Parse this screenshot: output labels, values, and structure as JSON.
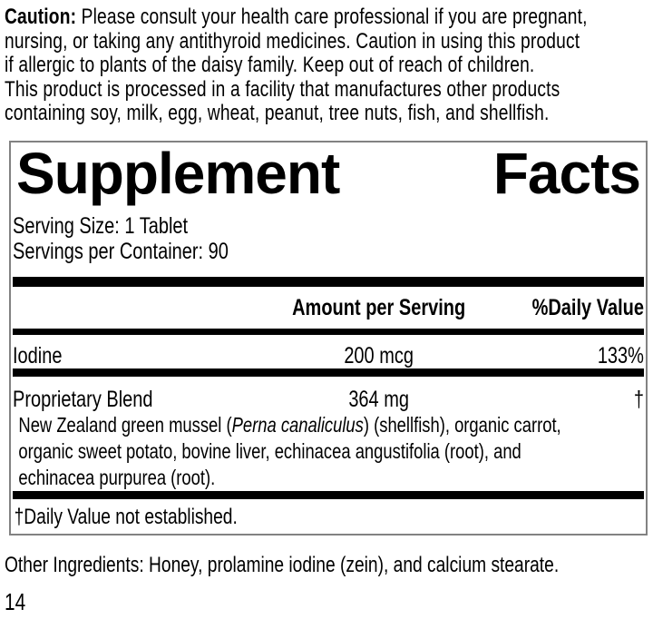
{
  "caution": {
    "label": "Caution:",
    "line1_rest": " Please consult your health care professional if you are pregnant,",
    "line2": "nursing, or taking any antithyroid medicines. Caution in using this product",
    "line3": "if allergic to plants of the daisy family. Keep out of reach of children.",
    "line4": "This product is processed in a facility that manufactures other products",
    "line5": "containing soy, milk, egg, wheat, peanut, tree nuts, fish, and shellfish."
  },
  "panel": {
    "title": {
      "word1": "Supplement",
      "word2": "Facts"
    },
    "serving_size": "Serving Size: 1 Tablet",
    "servings_per_container": "Servings per Container: 90",
    "columns": {
      "amount": "Amount per Serving",
      "daily_value": "%Daily Value"
    },
    "rows": [
      {
        "name": "Iodine",
        "amount": "200 mcg",
        "daily_value": "133%"
      },
      {
        "name": "Proprietary Blend",
        "amount": "364 mg",
        "daily_value": "†"
      }
    ],
    "blend_description": {
      "line1_pre": "New Zealand green mussel (",
      "line1_italic": "Perna canaliculus",
      "line1_post": ") (shellfish), organic carrot,",
      "line2": "organic sweet potato, bovine liver, echinacea angustifolia (root), and",
      "line3": "echinacea purpurea (root)."
    },
    "footnote": "†Daily Value not established."
  },
  "other_ingredients": "Other Ingredients: Honey, prolamine iodine (zein), and calcium stearate.",
  "page_number": "14",
  "colors": {
    "background": "#ffffff",
    "text": "#000000",
    "bars": "#000000",
    "panel_border": "#828282"
  }
}
